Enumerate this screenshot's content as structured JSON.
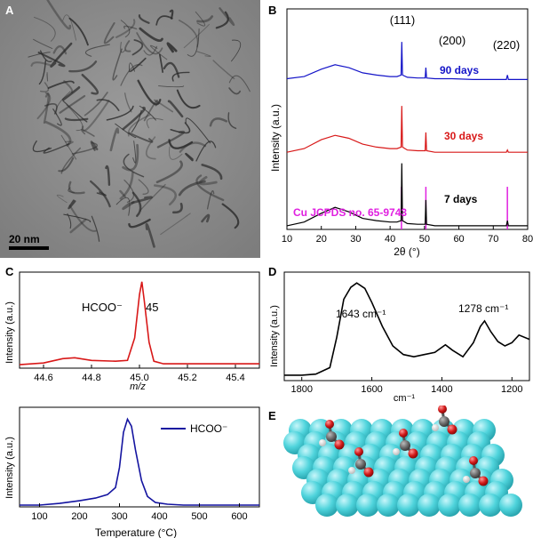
{
  "figure": {
    "panel_a": {
      "label": "A",
      "scale_bar": "20 nm"
    },
    "panel_b": {
      "label": "B",
      "ylabel": "Intensity (a.u.)",
      "xlabel": "2θ (°)",
      "peak_labels": [
        "(111)",
        "(200)",
        "(220)"
      ],
      "reference_label": "Cu JCPDS no. 65-9743"
    },
    "panel_c": {
      "label": "C",
      "top_ylabel": "Intensity (a.u.)",
      "top_xlabel": "m/z",
      "ion_label": "HCOO⁻",
      "peak_value": "45",
      "bottom_ylabel": "Intensity (a.u.)",
      "bottom_xlabel": "Temperature (°C)",
      "legend": "HCOO⁻"
    },
    "panel_d": {
      "label": "D",
      "ylabel": "Intensity (a.u.)",
      "xlabel": "cm⁻¹",
      "peak1": "1643 cm⁻¹",
      "peak2": "1278 cm⁻¹"
    },
    "panel_e": {
      "label": "E"
    }
  },
  "chart_data": [
    {
      "type": "line",
      "panel": "B",
      "xlabel": "2θ (°)",
      "ylabel": "Intensity (a.u.)",
      "xlim": [
        10,
        80
      ],
      "xticks": [
        10,
        20,
        30,
        40,
        50,
        60,
        70,
        80
      ],
      "series": [
        {
          "name": "90 days",
          "color": "#1414c8",
          "offset": 2.0,
          "x": [
            10,
            15,
            20,
            24,
            28,
            32,
            36,
            40,
            42,
            43.2,
            43.4,
            43.6,
            45,
            48,
            50.2,
            50.4,
            50.6,
            53,
            58,
            64,
            70,
            73.8,
            74.1,
            74.4,
            77,
            80
          ],
          "y": [
            0.05,
            0.08,
            0.18,
            0.24,
            0.2,
            0.13,
            0.1,
            0.08,
            0.08,
            0.1,
            0.55,
            0.1,
            0.07,
            0.06,
            0.06,
            0.2,
            0.06,
            0.05,
            0.05,
            0.04,
            0.04,
            0.04,
            0.1,
            0.04,
            0.04,
            0.04
          ]
        },
        {
          "name": "30 days",
          "color": "#d81818",
          "offset": 1.0,
          "x": [
            10,
            15,
            20,
            24,
            28,
            32,
            36,
            40,
            42,
            43.2,
            43.4,
            43.6,
            45,
            48,
            50.2,
            50.4,
            50.6,
            53,
            58,
            64,
            70,
            73.8,
            74.1,
            74.4,
            77,
            80
          ],
          "y": [
            0.05,
            0.1,
            0.22,
            0.28,
            0.24,
            0.16,
            0.12,
            0.1,
            0.1,
            0.12,
            0.68,
            0.12,
            0.08,
            0.07,
            0.07,
            0.32,
            0.07,
            0.05,
            0.05,
            0.05,
            0.05,
            0.05,
            0.08,
            0.05,
            0.05,
            0.05
          ]
        },
        {
          "name": "7 days",
          "color": "#000000",
          "offset": 0.0,
          "x": [
            10,
            15,
            20,
            24,
            28,
            32,
            36,
            40,
            42,
            43.2,
            43.4,
            43.6,
            45,
            48,
            50.2,
            50.4,
            50.6,
            53,
            58,
            64,
            70,
            73.8,
            74.1,
            74.4,
            77,
            80
          ],
          "y": [
            0.05,
            0.1,
            0.22,
            0.3,
            0.24,
            0.15,
            0.12,
            0.1,
            0.1,
            0.12,
            0.9,
            0.12,
            0.08,
            0.07,
            0.07,
            0.4,
            0.07,
            0.05,
            0.05,
            0.05,
            0.05,
            0.05,
            0.12,
            0.05,
            0.05,
            0.05
          ]
        }
      ],
      "reference_lines": [
        43.3,
        50.4,
        74.1
      ],
      "reference_color": "#e020e0"
    },
    {
      "type": "line",
      "panel": "C-top",
      "xlabel": "m/z",
      "ylabel": "Intensity (a.u.)",
      "xlim": [
        44.5,
        45.5
      ],
      "xticks": [
        44.6,
        44.8,
        45.0,
        45.2,
        45.4
      ],
      "series": [
        {
          "color": "#d81818",
          "x": [
            44.5,
            44.6,
            44.68,
            44.73,
            44.8,
            44.9,
            44.95,
            44.98,
            45.0,
            45.01,
            45.02,
            45.04,
            45.06,
            45.1,
            45.2,
            45.3,
            45.5
          ],
          "y": [
            0.04,
            0.06,
            0.11,
            0.12,
            0.09,
            0.08,
            0.09,
            0.35,
            0.85,
            1.0,
            0.78,
            0.3,
            0.08,
            0.05,
            0.05,
            0.05,
            0.05
          ]
        }
      ]
    },
    {
      "type": "line",
      "panel": "C-bottom",
      "xlabel": "Temperature (°C)",
      "ylabel": "Intensity (a.u.)",
      "xlim": [
        50,
        650
      ],
      "xticks": [
        100,
        200,
        300,
        400,
        500,
        600
      ],
      "series": [
        {
          "name": "HCOO⁻",
          "color": "#1414a0",
          "x": [
            50,
            100,
            150,
            200,
            240,
            270,
            290,
            300,
            310,
            320,
            330,
            340,
            355,
            370,
            390,
            420,
            460,
            520,
            600,
            650
          ],
          "y": [
            0.02,
            0.02,
            0.04,
            0.07,
            0.1,
            0.14,
            0.22,
            0.45,
            0.85,
            1.0,
            0.92,
            0.65,
            0.3,
            0.12,
            0.05,
            0.03,
            0.02,
            0.02,
            0.02,
            0.02
          ]
        }
      ]
    },
    {
      "type": "line",
      "panel": "D",
      "xlabel": "cm⁻¹",
      "ylabel": "Intensity (a.u.)",
      "xlim": [
        1850,
        1150
      ],
      "xticks": [
        1800,
        1600,
        1400,
        1200
      ],
      "series": [
        {
          "color": "#000000",
          "x": [
            1850,
            1800,
            1760,
            1720,
            1700,
            1680,
            1660,
            1643,
            1620,
            1600,
            1570,
            1540,
            1510,
            1480,
            1450,
            1420,
            1390,
            1370,
            1340,
            1310,
            1290,
            1278,
            1260,
            1240,
            1220,
            1200,
            1180,
            1150
          ],
          "y": [
            0.05,
            0.05,
            0.06,
            0.12,
            0.4,
            0.75,
            0.86,
            0.9,
            0.85,
            0.72,
            0.5,
            0.32,
            0.24,
            0.22,
            0.24,
            0.26,
            0.33,
            0.28,
            0.22,
            0.35,
            0.5,
            0.55,
            0.45,
            0.36,
            0.32,
            0.35,
            0.42,
            0.38
          ]
        }
      ]
    }
  ]
}
